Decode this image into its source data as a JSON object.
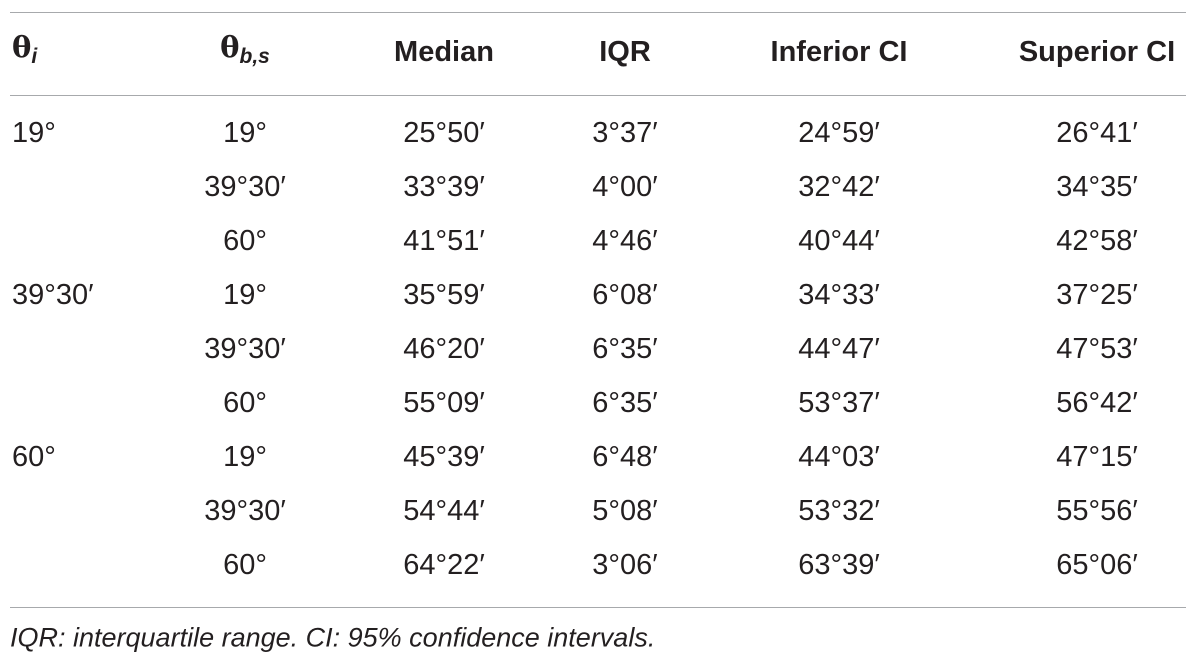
{
  "table": {
    "header": [
      {
        "base": "θ",
        "sub": "i"
      },
      {
        "base": "θ",
        "sub": "b,s"
      },
      "Median",
      "IQR",
      "Inferior CI",
      "Superior CI"
    ],
    "groups": [
      {
        "theta_i": "19°",
        "rows": [
          [
            "19°",
            "25°50′",
            "3°37′",
            "24°59′",
            "26°41′"
          ],
          [
            "39°30′",
            "33°39′",
            "4°00′",
            "32°42′",
            "34°35′"
          ],
          [
            "60°",
            "41°51′",
            "4°46′",
            "40°44′",
            "42°58′"
          ]
        ]
      },
      {
        "theta_i": "39°30′",
        "rows": [
          [
            "19°",
            "35°59′",
            "6°08′",
            "34°33′",
            "37°25′"
          ],
          [
            "39°30′",
            "46°20′",
            "6°35′",
            "44°47′",
            "47°53′"
          ],
          [
            "60°",
            "55°09′",
            "6°35′",
            "53°37′",
            "56°42′"
          ]
        ]
      },
      {
        "theta_i": "60°",
        "rows": [
          [
            "19°",
            "45°39′",
            "6°48′",
            "44°03′",
            "47°15′"
          ],
          [
            "39°30′",
            "54°44′",
            "5°08′",
            "53°32′",
            "55°56′"
          ],
          [
            "60°",
            "64°22′",
            "3°06′",
            "63°39′",
            "65°06′"
          ]
        ]
      }
    ],
    "footnote": "IQR: interquartile range. CI: 95% confidence intervals."
  }
}
